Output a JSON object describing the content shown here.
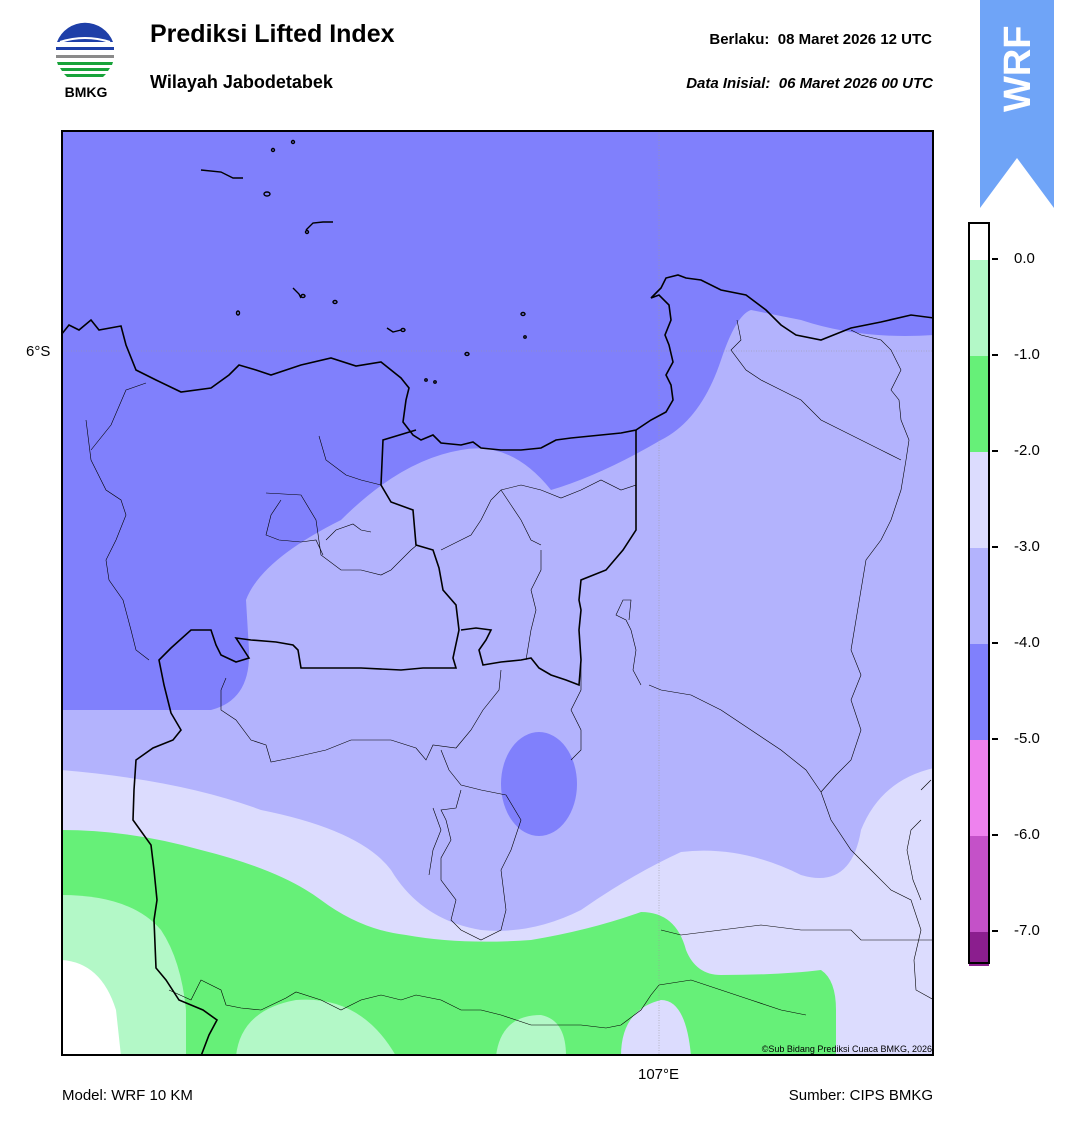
{
  "header": {
    "logo_text": "BMKG",
    "title": "Prediksi Lifted Index",
    "subtitle": "Wilayah Jabodetabek",
    "valid_label": "Berlaku:",
    "valid_time": "08 Maret 2026 12 UTC",
    "init_label": "Data Inisial:",
    "init_time": "06 Maret 2026 00 UTC"
  },
  "badge": {
    "text": "WRF",
    "color": "#6fa4f7"
  },
  "map": {
    "lat_label": "6°S",
    "lon_label": "107°E",
    "copyright": "©Sub Bidang Prediksi Cuaca BMKG, 2026"
  },
  "footer": {
    "model": "Model: WRF 10 KM",
    "source": "Sumber: CIPS BMKG"
  },
  "colorbar": {
    "ticks": [
      "0.0",
      "-1.0",
      "-2.0",
      "-3.0",
      "-4.0",
      "-5.0",
      "-6.0",
      "-7.0"
    ],
    "bins": [
      {
        "range": "> 0",
        "color": "#ffffff"
      },
      {
        "range": "0 to -1",
        "color": "#b3f8c7"
      },
      {
        "range": "-1 to -2",
        "color": "#66f078"
      },
      {
        "range": "-2 to -3",
        "color": "#dcdcfe"
      },
      {
        "range": "-3 to -4",
        "color": "#b3b3fd"
      },
      {
        "range": "-4 to -5",
        "color": "#8080fc"
      },
      {
        "range": "-5 to -6",
        "color": "#ee82ee"
      },
      {
        "range": "-6 to -7",
        "color": "#c451c8"
      },
      {
        "range": "< -7",
        "color": "#8b1e8e"
      }
    ]
  }
}
